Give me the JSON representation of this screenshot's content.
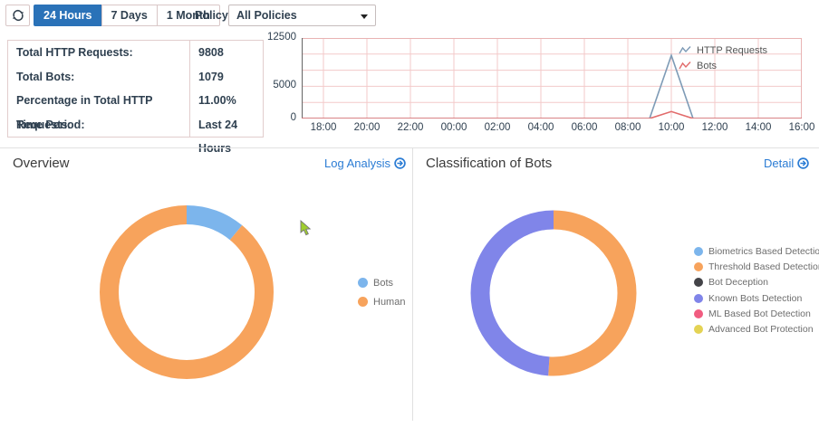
{
  "toolbar": {
    "time_buttons": [
      {
        "label": "24 Hours",
        "selected": true
      },
      {
        "label": "7 Days",
        "selected": false
      },
      {
        "label": "1 Month",
        "selected": false
      }
    ],
    "policy_label": "Policy",
    "policy_select_value": "All Policies"
  },
  "summary_table": {
    "rows": [
      {
        "label": "Total HTTP Requests:",
        "value": "9808"
      },
      {
        "label": "Total Bots:",
        "value": "1079"
      },
      {
        "label": "Percentage in Total HTTP Requests:",
        "value": "11.00%"
      },
      {
        "label": "Time Period:",
        "value": "Last 24 Hours"
      }
    ]
  },
  "sections": {
    "overview": {
      "title": "Overview",
      "link_label": "Log Analysis"
    },
    "classification": {
      "title": "Classification of Bots",
      "link_label": "Detail"
    }
  },
  "colors": {
    "selected_button_blue": "#2a72b8",
    "link_blue": "#2b7cd4",
    "grid_pink": "#f3c9c9",
    "chart_border_pink": "#e9b3b3",
    "axis_dark": "#6b6b6b"
  },
  "chart_data": [
    {
      "type": "line",
      "title": "",
      "xlabel": "",
      "ylabel": "",
      "ylim": [
        0,
        12500
      ],
      "grid": true,
      "legend_position": "top-right",
      "grid_color": "#f3c9c9",
      "border_color": "#e9b3b3",
      "x": [
        "17:00",
        "18:00",
        "19:00",
        "20:00",
        "21:00",
        "22:00",
        "23:00",
        "00:00",
        "01:00",
        "02:00",
        "03:00",
        "04:00",
        "05:00",
        "06:00",
        "07:00",
        "08:00",
        "09:00",
        "10:00",
        "11:00",
        "12:00",
        "13:00",
        "14:00",
        "15:00",
        "16:00"
      ],
      "x_ticks": [
        {
          "i": 1,
          "label": "18:00"
        },
        {
          "i": 3,
          "label": "20:00"
        },
        {
          "i": 5,
          "label": "22:00"
        },
        {
          "i": 7,
          "label": "00:00"
        },
        {
          "i": 9,
          "label": "02:00"
        },
        {
          "i": 11,
          "label": "04:00"
        },
        {
          "i": 13,
          "label": "06:00"
        },
        {
          "i": 15,
          "label": "08:00"
        },
        {
          "i": 17,
          "label": "10:00"
        },
        {
          "i": 19,
          "label": "12:00"
        },
        {
          "i": 21,
          "label": "14:00"
        },
        {
          "i": 23,
          "label": "16:00"
        }
      ],
      "y_ticks": [
        {
          "v": 0,
          "label": "0"
        },
        {
          "v": 5000,
          "label": "5000"
        },
        {
          "v": 12500,
          "label": "12500"
        }
      ],
      "y_grid": [
        2500,
        5000,
        7500,
        10000
      ],
      "series": [
        {
          "name": "HTTP Requests",
          "color": "#7e9bb6",
          "values": [
            0,
            0,
            0,
            0,
            0,
            0,
            0,
            0,
            0,
            0,
            0,
            0,
            0,
            0,
            0,
            0,
            0,
            9808,
            0,
            0,
            0,
            0,
            0,
            0
          ]
        },
        {
          "name": "Bots",
          "color": "#e26b6b",
          "values": [
            0,
            0,
            0,
            0,
            0,
            0,
            0,
            0,
            0,
            0,
            0,
            0,
            0,
            0,
            0,
            0,
            0,
            1079,
            0,
            0,
            0,
            0,
            0,
            0
          ]
        }
      ]
    },
    {
      "type": "pie",
      "title": "Overview",
      "donut": true,
      "legend_position": "right",
      "slices": [
        {
          "name": "Bots",
          "color": "#7cb5ec",
          "pct": 11,
          "value": 1079
        },
        {
          "name": "Human",
          "color": "#f7a35c",
          "pct": 89,
          "value": 8729
        }
      ]
    },
    {
      "type": "pie",
      "title": "Classification of Bots",
      "donut": true,
      "legend_position": "right",
      "slices": [
        {
          "name": "Biometrics Based Detection",
          "color": "#7cb5ec",
          "pct": 0
        },
        {
          "name": "Threshold Based Detection",
          "color": "#f7a35c",
          "pct": 51
        },
        {
          "name": "Bot Deception",
          "color": "#434348",
          "pct": 0
        },
        {
          "name": "Known Bots Detection",
          "color": "#8085e9",
          "pct": 49
        },
        {
          "name": "ML Based Bot Detection",
          "color": "#f15c80",
          "pct": 0
        },
        {
          "name": "Advanced Bot Protection",
          "color": "#e4d354",
          "pct": 0
        }
      ]
    }
  ]
}
